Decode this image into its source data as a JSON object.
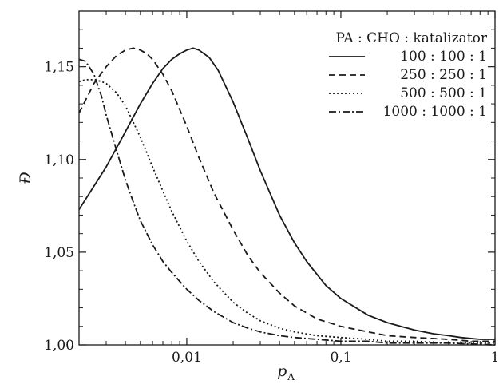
{
  "chart_data": {
    "type": "line",
    "title": "",
    "xlabel": "p",
    "xlabel_sub": "A",
    "ylabel": "Đ",
    "xscale": "log",
    "xlim": [
      0.002,
      1
    ],
    "ylim": [
      1.0,
      1.18
    ],
    "xticks": [
      {
        "value": 0.01,
        "label": "0,01"
      },
      {
        "value": 0.1,
        "label": "0,1"
      },
      {
        "value": 1,
        "label": "1"
      }
    ],
    "yticks": [
      {
        "value": 1.0,
        "label": "1,00"
      },
      {
        "value": 1.05,
        "label": "1,05"
      },
      {
        "value": 1.1,
        "label": "1,10"
      },
      {
        "value": 1.15,
        "label": "1,15"
      }
    ],
    "grid": false,
    "legend_title": "PA : CHO : katalizator",
    "legend_position": "top-right",
    "series": [
      {
        "name": "100 : 100 : 1",
        "dash": "solid",
        "x": [
          0.002,
          0.003,
          0.004,
          0.005,
          0.006,
          0.007,
          0.008,
          0.009,
          0.01,
          0.011,
          0.012,
          0.014,
          0.016,
          0.02,
          0.025,
          0.03,
          0.04,
          0.05,
          0.06,
          0.08,
          0.1,
          0.15,
          0.2,
          0.3,
          0.4,
          0.5,
          0.6,
          0.8,
          1.0
        ],
        "y": [
          1.073,
          1.096,
          1.115,
          1.13,
          1.141,
          1.149,
          1.154,
          1.157,
          1.159,
          1.16,
          1.159,
          1.155,
          1.148,
          1.131,
          1.111,
          1.094,
          1.07,
          1.055,
          1.045,
          1.032,
          1.025,
          1.016,
          1.012,
          1.008,
          1.006,
          1.005,
          1.004,
          1.003,
          1.003
        ]
      },
      {
        "name": "250 : 250 : 1",
        "dash": "dashed",
        "x": [
          0.002,
          0.0025,
          0.003,
          0.0035,
          0.004,
          0.0045,
          0.005,
          0.0055,
          0.006,
          0.007,
          0.008,
          0.01,
          0.012,
          0.015,
          0.02,
          0.025,
          0.03,
          0.04,
          0.05,
          0.07,
          0.1,
          0.15,
          0.2,
          0.3,
          0.5,
          0.7,
          1.0
        ],
        "y": [
          1.125,
          1.141,
          1.15,
          1.156,
          1.159,
          1.16,
          1.159,
          1.157,
          1.154,
          1.146,
          1.137,
          1.118,
          1.101,
          1.082,
          1.062,
          1.048,
          1.039,
          1.028,
          1.021,
          1.014,
          1.01,
          1.007,
          1.005,
          1.004,
          1.003,
          1.002,
          1.002
        ]
      },
      {
        "name": "500 : 500 : 1",
        "dash": "dotted",
        "x": [
          0.002,
          0.0022,
          0.0025,
          0.0028,
          0.003,
          0.0035,
          0.004,
          0.0045,
          0.005,
          0.006,
          0.007,
          0.008,
          0.01,
          0.012,
          0.015,
          0.02,
          0.025,
          0.03,
          0.04,
          0.05,
          0.07,
          0.1,
          0.15,
          0.2,
          0.3,
          0.5,
          1.0
        ],
        "y": [
          1.142,
          1.143,
          1.143,
          1.142,
          1.141,
          1.136,
          1.129,
          1.12,
          1.112,
          1.096,
          1.083,
          1.072,
          1.056,
          1.045,
          1.034,
          1.023,
          1.017,
          1.013,
          1.009,
          1.007,
          1.005,
          1.004,
          1.003,
          1.002,
          1.002,
          1.001,
          1.001
        ]
      },
      {
        "name": "1000 : 1000 : 1",
        "dash": "dashdot",
        "x": [
          0.002,
          0.0022,
          0.0025,
          0.0028,
          0.003,
          0.0035,
          0.004,
          0.0045,
          0.005,
          0.006,
          0.007,
          0.008,
          0.01,
          0.012,
          0.015,
          0.02,
          0.025,
          0.03,
          0.04,
          0.05,
          0.07,
          0.1,
          0.15,
          0.2,
          0.3,
          0.5,
          1.0
        ],
        "y": [
          1.154,
          1.153,
          1.146,
          1.134,
          1.124,
          1.105,
          1.089,
          1.077,
          1.067,
          1.054,
          1.045,
          1.039,
          1.03,
          1.024,
          1.018,
          1.012,
          1.009,
          1.007,
          1.005,
          1.004,
          1.003,
          1.002,
          1.002,
          1.001,
          1.001,
          1.001,
          1.0
        ]
      }
    ]
  }
}
